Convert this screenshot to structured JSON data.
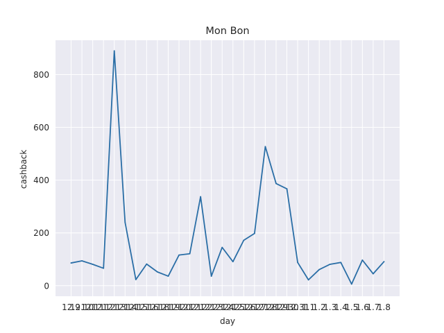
{
  "chart_data": {
    "type": "line",
    "title": "Mon Bon",
    "xlabel": "day",
    "ylabel": "cashback",
    "categories": [
      "12.9",
      "12.10",
      "12.11",
      "12.12",
      "12.13",
      "12.14",
      "12.15",
      "12.16",
      "12.18",
      "12.19",
      "12.20",
      "12.21",
      "12.22",
      "12.23",
      "12.24",
      "12.25",
      "12.26",
      "12.27",
      "12.28",
      "12.29",
      "12.30",
      "12.31",
      "1.1",
      "1.2",
      "1.3",
      "1.4",
      "1.5",
      "1.6",
      "1.7",
      "1.8"
    ],
    "series": [
      {
        "values": [
          86,
          94,
          81,
          66,
          890,
          240,
          23,
          82,
          52,
          36,
          116,
          121,
          337,
          36,
          145,
          91,
          172,
          198,
          527,
          387,
          367,
          88,
          22,
          61,
          81,
          88,
          6,
          97,
          45,
          91
        ]
      }
    ],
    "ylim": [
      -40,
      930
    ],
    "yticks": [
      0,
      200,
      400,
      600,
      800
    ],
    "grid": true,
    "colors": {
      "line": "#2a6ea6",
      "plot_bg": "#eaeaf2",
      "grid": "#ffffff"
    }
  }
}
